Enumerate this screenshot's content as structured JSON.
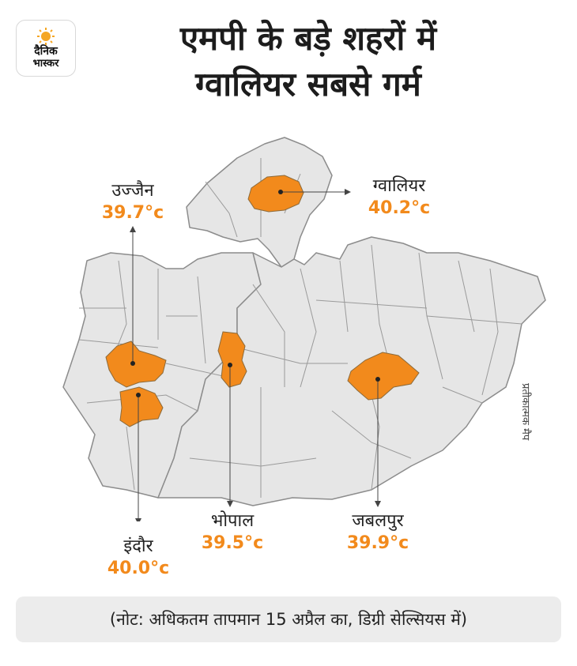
{
  "brand": {
    "line1": "दैनिक",
    "line2": "भास्कर"
  },
  "title": {
    "line1": "एमपी के बड़े शहरों में",
    "line2": "ग्वालियर सबसे गर्म"
  },
  "cities": {
    "ujjain": {
      "name": "उज्जैन",
      "temp": "39.7°c"
    },
    "gwalior": {
      "name": "ग्वालियर",
      "temp": "40.2°c"
    },
    "indore": {
      "name": "इंदौर",
      "temp": "40.0°c"
    },
    "bhopal": {
      "name": "भोपाल",
      "temp": "39.5°c"
    },
    "jabalpur": {
      "name": "जबलपुर",
      "temp": "39.9°c"
    }
  },
  "side_note": "प्रतीकात्मक मैप",
  "footer_note": "(नोट: अधिकतम तापमान 15 अप्रैल का, डिग्री सेल्सियस में)",
  "colors": {
    "highlight": "#f28a1c",
    "region_fill": "#e6e6e6",
    "border": "#8c8c8c"
  }
}
